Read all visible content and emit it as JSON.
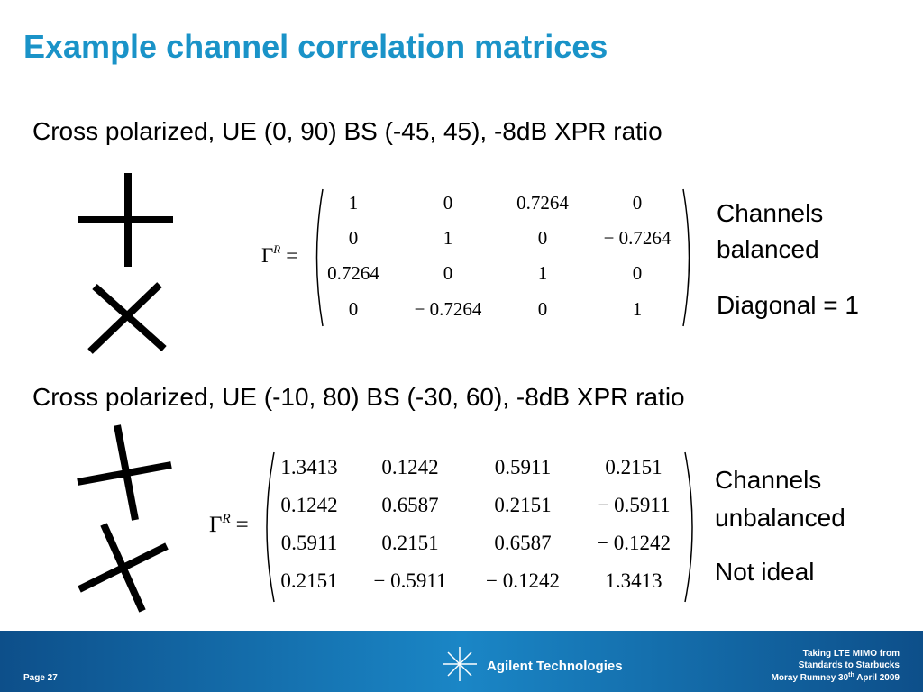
{
  "title": "Example channel correlation matrices",
  "sections": [
    {
      "heading": "Cross polarized, UE (0, 90) BS (-45, 45), -8dB XPR ratio",
      "matrix_label": {
        "symbol": "Γ",
        "superscript": "R",
        "equals": "="
      },
      "matrix": [
        [
          "1",
          "0",
          "0.7264",
          "0"
        ],
        [
          "0",
          "1",
          "0",
          "− 0.7264"
        ],
        [
          "0.7264",
          "0",
          "1",
          "0"
        ],
        [
          "0",
          "− 0.7264",
          "0",
          "1"
        ]
      ],
      "notes": [
        "Channels",
        "balanced",
        "Diagonal = 1"
      ]
    },
    {
      "heading": "Cross polarized, UE (-10, 80) BS (-30, 60), -8dB XPR ratio",
      "matrix_label": {
        "symbol": "Γ",
        "superscript": "R",
        "equals": "="
      },
      "matrix": [
        [
          "1.3413",
          "0.1242",
          "0.5911",
          "0.2151"
        ],
        [
          "0.1242",
          "0.6587",
          "0.2151",
          "− 0.5911"
        ],
        [
          "0.5911",
          "0.2151",
          "0.6587",
          "− 0.1242"
        ],
        [
          "0.2151",
          "− 0.5911",
          "− 0.1242",
          "1.3413"
        ]
      ],
      "notes": [
        "Channels",
        "unbalanced",
        "Not ideal"
      ]
    }
  ],
  "footer": {
    "page": "Page 27",
    "brand": "Agilent Technologies",
    "caption": [
      "Taking LTE MIMO from",
      "Standards to Starbucks"
    ],
    "author": "Moray Rumney 30",
    "author_sup": "th",
    "date": " April 2009"
  }
}
